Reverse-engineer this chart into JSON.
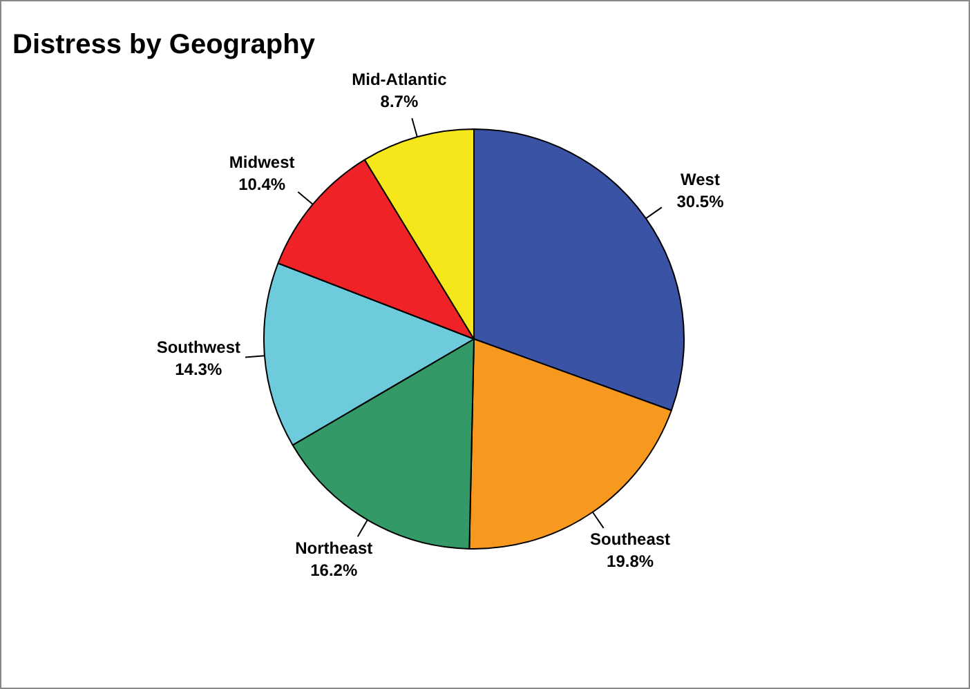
{
  "chart_data": {
    "type": "pie",
    "title": "Distress by Geography",
    "categories": [
      "West",
      "Southeast",
      "Northeast",
      "Southwest",
      "Midwest",
      "Mid-Atlantic"
    ],
    "values": [
      30.5,
      19.8,
      16.2,
      14.3,
      10.4,
      8.7
    ],
    "value_labels": [
      "30.5%",
      "19.8%",
      "16.2%",
      "14.3%",
      "10.4%",
      "8.7%"
    ],
    "colors": [
      "#3a53a4",
      "#f7991f",
      "#339966",
      "#6dcbdc",
      "#ee2227",
      "#f5e71a"
    ],
    "legend": false
  }
}
